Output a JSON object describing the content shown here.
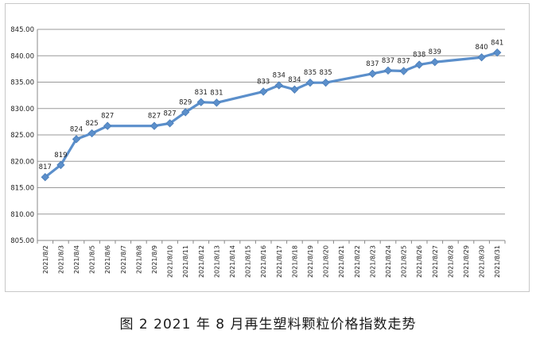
{
  "chart_data": {
    "type": "line",
    "title": "",
    "xlabel": "",
    "ylabel": "",
    "ylim": [
      805,
      845
    ],
    "ytick_labels": [
      "845.00",
      "840.00",
      "835.00",
      "830.00",
      "825.00",
      "820.00",
      "815.00",
      "810.00",
      "805.00"
    ],
    "grid": true,
    "legend": "none",
    "colors": {
      "line": "#5b8fcb",
      "marker": "#5b8fcb",
      "grid": "#9a9a9a",
      "axis": "#888888",
      "text": "#222222"
    },
    "categories": [
      "2021/8/2",
      "2021/8/3",
      "2021/8/4",
      "2021/8/5",
      "2021/8/6",
      "2021/8/7",
      "2021/8/8",
      "2021/8/9",
      "2021/8/10",
      "2021/8/11",
      "2021/8/12",
      "2021/8/13",
      "2021/8/14",
      "2021/8/15",
      "2021/8/16",
      "2021/8/17",
      "2021/8/18",
      "2021/8/19",
      "2021/8/20",
      "2021/8/21",
      "2021/8/22",
      "2021/8/23",
      "2021/8/24",
      "2021/8/25",
      "2021/8/26",
      "2021/8/27",
      "2021/8/28",
      "2021/8/29",
      "2021/8/30",
      "2021/8/31"
    ],
    "series": [
      {
        "values": [
          817,
          819.3,
          824.2,
          825.3,
          826.7,
          null,
          null,
          826.7,
          827.2,
          829.3,
          831.2,
          831.1,
          null,
          null,
          833.2,
          834.4,
          833.6,
          834.9,
          834.9,
          null,
          null,
          836.6,
          837.2,
          837.1,
          838.3,
          838.8,
          null,
          null,
          839.7,
          840.6
        ],
        "labels": [
          "817",
          "819",
          "824",
          "825",
          "827",
          "",
          "",
          "827",
          "827",
          "829",
          "831",
          "831",
          "",
          "",
          "833",
          "834",
          "834",
          "835",
          "835",
          "",
          "",
          "837",
          "837",
          "837",
          "838",
          "839",
          "",
          "",
          "840",
          "841"
        ]
      }
    ]
  },
  "caption": "图 2  2021 年 8 月再生塑料颗粒价格指数走势"
}
